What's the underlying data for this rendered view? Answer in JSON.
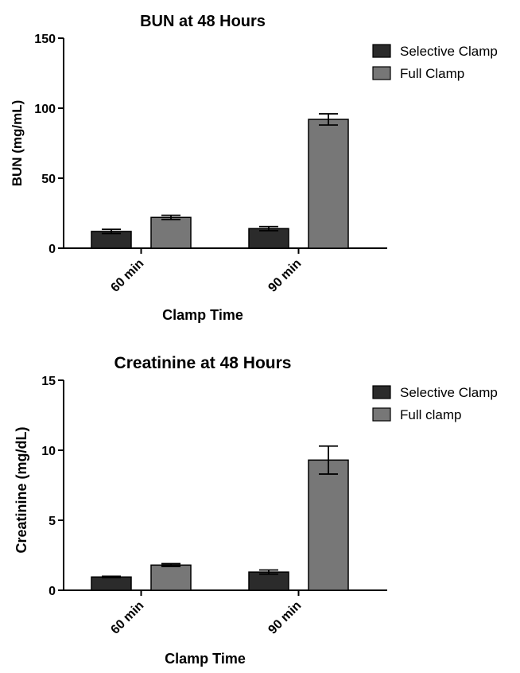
{
  "chart_data": [
    {
      "type": "bar",
      "title": "BUN at 48 Hours",
      "xlabel": "Clamp Time",
      "ylabel": "BUN (mg/mL)",
      "categories": [
        "60 min",
        "90 min"
      ],
      "ylim": [
        0,
        150
      ],
      "yticks": [
        "0",
        "50",
        "100",
        "150"
      ],
      "grid": false,
      "legend_position": "top-right",
      "series": [
        {
          "name": "Selective Clamp",
          "color": "#2b2b2b",
          "values": [
            12,
            14
          ],
          "errors": [
            1.5,
            1.5
          ]
        },
        {
          "name": "Full Clamp",
          "color": "#777777",
          "values": [
            22,
            92
          ],
          "errors": [
            1.5,
            4
          ]
        }
      ]
    },
    {
      "type": "bar",
      "title": "Creatinine at 48 Hours",
      "xlabel": "Clamp Time",
      "ylabel": "Creatinine (mg/dL)",
      "categories": [
        "60 min",
        "90 min"
      ],
      "ylim": [
        0,
        15
      ],
      "yticks": [
        "0",
        "5",
        "10",
        "15"
      ],
      "grid": false,
      "legend_position": "top-right",
      "series": [
        {
          "name": "Selective Clamp",
          "color": "#2b2b2b",
          "values": [
            0.95,
            1.3
          ],
          "errors": [
            0.05,
            0.15
          ]
        },
        {
          "name": "Full clamp",
          "color": "#777777",
          "values": [
            1.8,
            9.3
          ],
          "errors": [
            0.1,
            1.0
          ]
        }
      ]
    }
  ]
}
